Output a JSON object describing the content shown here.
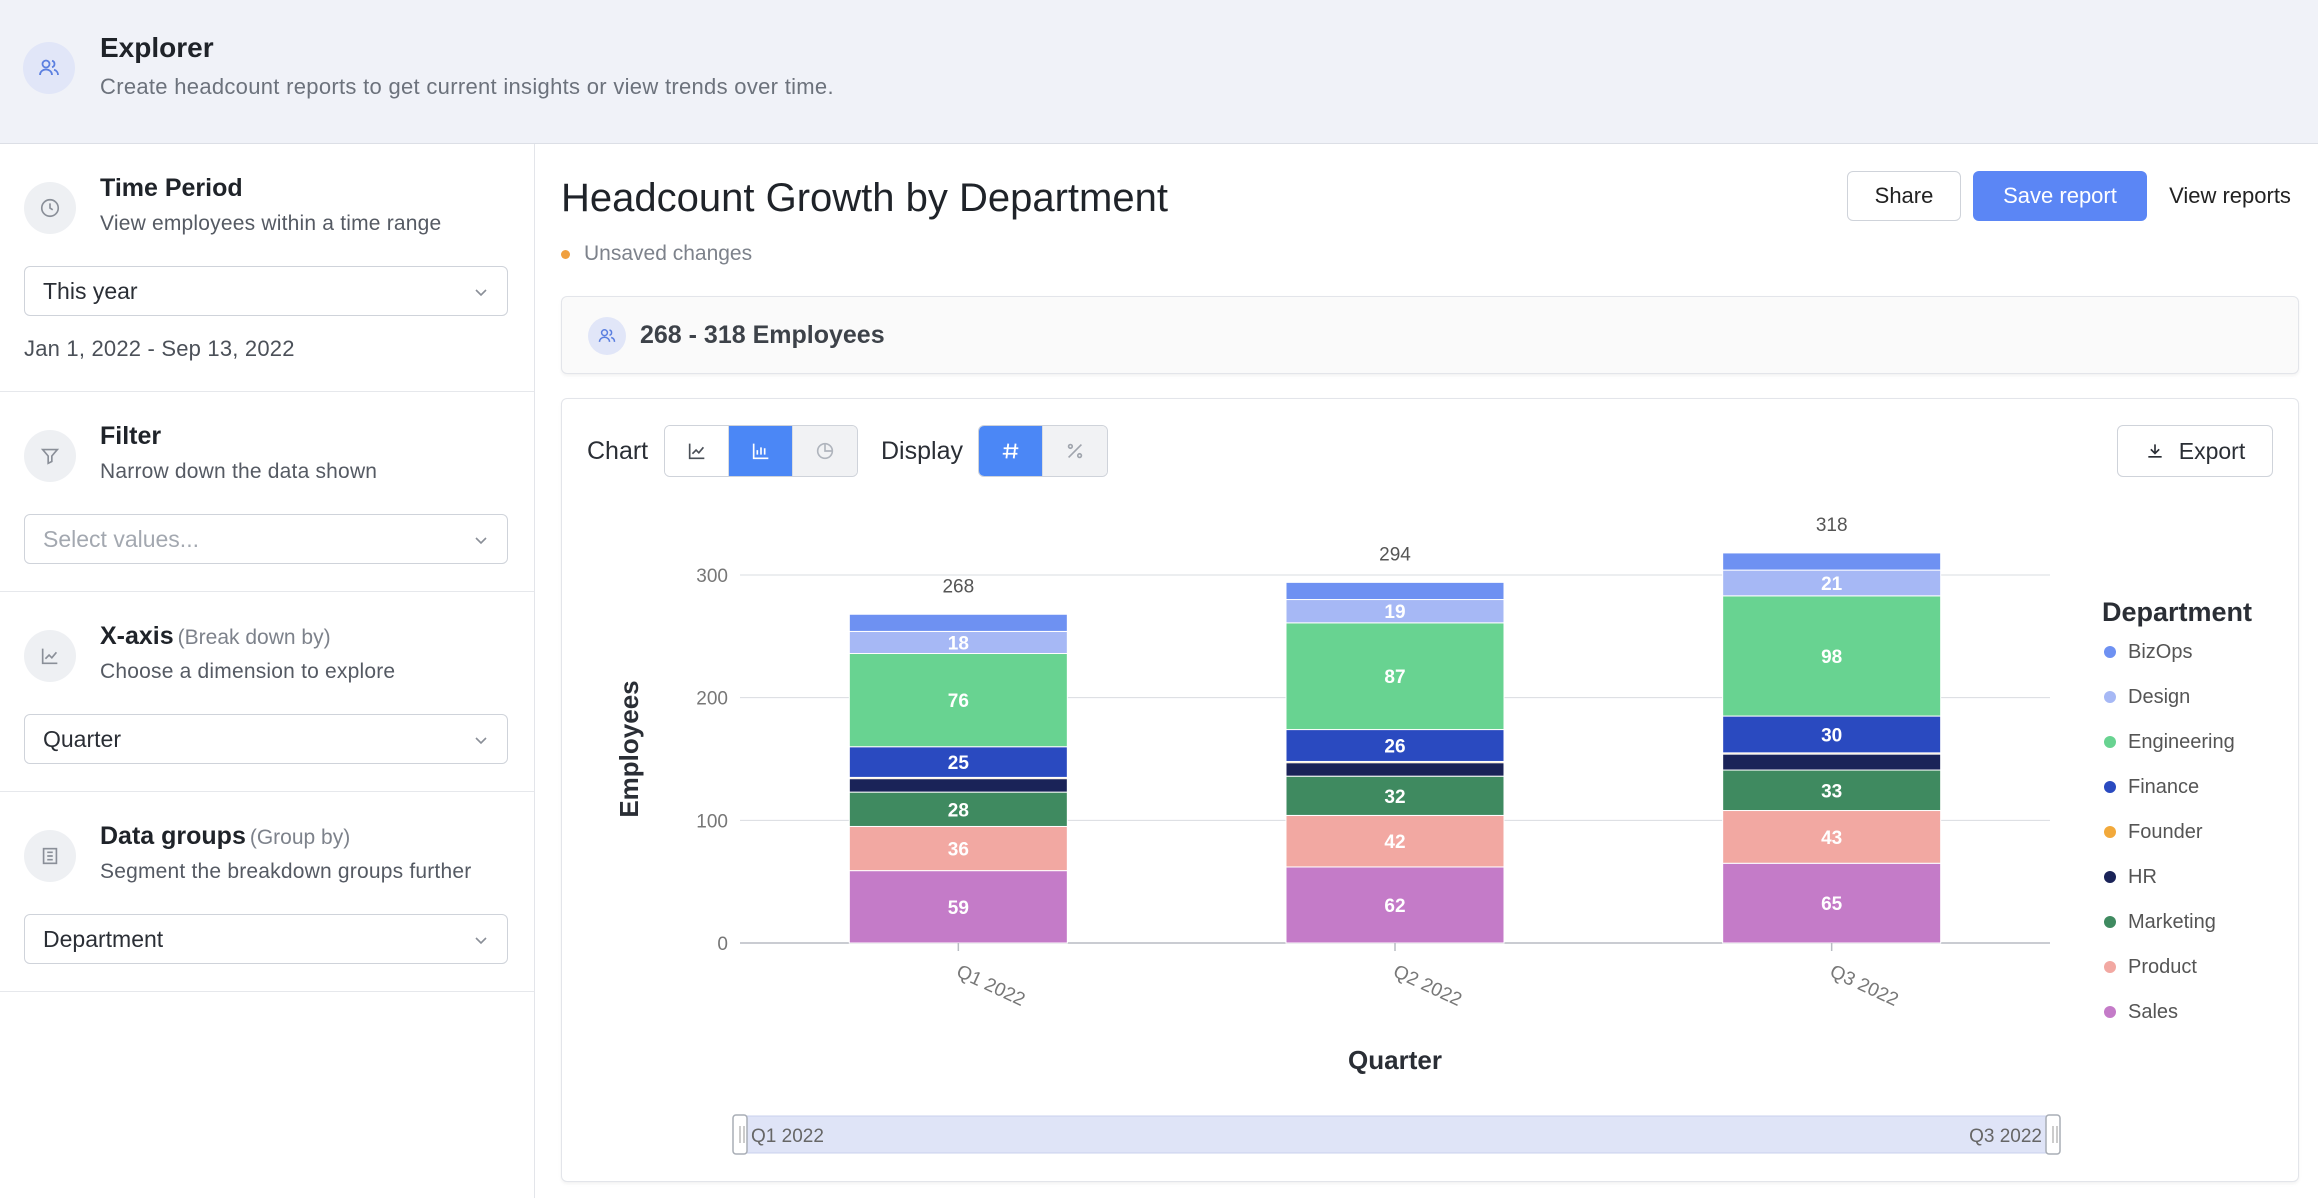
{
  "header": {
    "title": "Explorer",
    "subtitle": "Create headcount reports to get current insights or view trends over time.",
    "icon": "users-icon"
  },
  "sidebar": {
    "time_period": {
      "title": "Time Period",
      "description": "View employees within a time range",
      "selected": "This year",
      "date_range": "Jan 1, 2022 - Sep 13, 2022",
      "icon": "clock-icon"
    },
    "filter": {
      "title": "Filter",
      "description": "Narrow down the data shown",
      "placeholder": "Select values...",
      "icon": "funnel-icon"
    },
    "x_axis": {
      "title": "X-axis",
      "hint": "(Break down by)",
      "description": "Choose a dimension to explore",
      "selected": "Quarter",
      "icon": "line-chart-icon"
    },
    "data_groups": {
      "title": "Data groups",
      "hint": "(Group by)",
      "description": "Segment the breakdown groups further",
      "selected": "Department",
      "icon": "building-icon"
    }
  },
  "main": {
    "report_title": "Headcount Growth by Department",
    "unsaved": "Unsaved changes",
    "share_label": "Share",
    "save_label": "Save report",
    "view_label": "View reports",
    "summary": "268 - 318 Employees",
    "chart_label": "Chart",
    "display_label": "Display",
    "export_label": "Export",
    "range_start": "Q1 2022",
    "range_end": "Q3 2022"
  },
  "colors": {
    "accent": "#4b87f6",
    "save": "#5b86f5",
    "unsaved_dot": "#f0a040"
  },
  "chart_data": {
    "type": "bar",
    "stacked": true,
    "categories": [
      "Q1 2022",
      "Q2 2022",
      "Q3 2022"
    ],
    "xlabel": "Quarter",
    "ylabel": "Employees",
    "ylim": [
      0,
      300
    ],
    "yticks": [
      0,
      100,
      200,
      300
    ],
    "totals": [
      268,
      294,
      318
    ],
    "legend_title": "Department",
    "legend_position": "right",
    "grid": true,
    "series": [
      {
        "name": "Sales",
        "color": "#c47bc8",
        "values": [
          59,
          62,
          65
        ]
      },
      {
        "name": "Product",
        "color": "#f2a8a2",
        "values": [
          36,
          42,
          43
        ]
      },
      {
        "name": "Marketing",
        "color": "#3f8a60",
        "values": [
          28,
          32,
          33
        ]
      },
      {
        "name": "HR",
        "color": "#1a2358",
        "values": [
          11,
          11,
          13
        ]
      },
      {
        "name": "Founder",
        "color": "#f2a93b",
        "values": [
          1,
          1,
          1
        ]
      },
      {
        "name": "Finance",
        "color": "#2a4ac0",
        "values": [
          25,
          26,
          30
        ]
      },
      {
        "name": "Engineering",
        "color": "#68d391",
        "values": [
          76,
          87,
          98
        ]
      },
      {
        "name": "Design",
        "color": "#a6b8f5",
        "values": [
          18,
          19,
          21
        ]
      },
      {
        "name": "BizOps",
        "color": "#6e91f2",
        "values": [
          14,
          14,
          14
        ]
      }
    ],
    "legend_order": [
      "BizOps",
      "Design",
      "Engineering",
      "Finance",
      "Founder",
      "HR",
      "Marketing",
      "Product",
      "Sales"
    ],
    "labeled_series": [
      "Sales",
      "Product",
      "Marketing",
      "Finance",
      "Engineering",
      "Design"
    ]
  }
}
